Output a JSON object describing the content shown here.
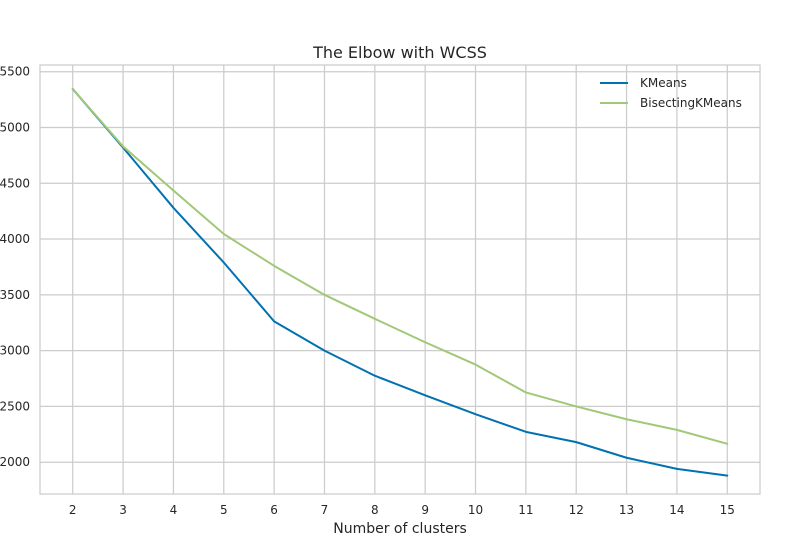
{
  "chart_data": {
    "type": "line",
    "title": "The Elbow with WCSS",
    "xlabel": "Number of clusters",
    "ylabel": "",
    "x": [
      2,
      3,
      4,
      5,
      6,
      7,
      8,
      9,
      10,
      11,
      12,
      13,
      14,
      15
    ],
    "xlim": [
      1.35,
      15.65
    ],
    "ylim": [
      1715,
      5560
    ],
    "xticks": [
      2,
      3,
      4,
      5,
      6,
      7,
      8,
      9,
      10,
      11,
      12,
      13,
      14,
      15
    ],
    "yticks": [
      2000,
      2500,
      3000,
      3500,
      4000,
      4500,
      5000,
      5500
    ],
    "grid": true,
    "legend_position": "top-right",
    "series": [
      {
        "name": "KMeans",
        "color": "#0072b2",
        "values": [
          5345,
          4820,
          4280,
          3790,
          3262,
          3000,
          2775,
          2600,
          2430,
          2272,
          2180,
          2040,
          1940,
          1880
        ]
      },
      {
        "name": "BisectingKMeans",
        "color": "#a1c878",
        "values": [
          5345,
          4830,
          4435,
          4045,
          3760,
          3500,
          3285,
          3075,
          2875,
          2625,
          2500,
          2385,
          2290,
          2165
        ]
      }
    ],
    "colors": {
      "grid": "#cccccc",
      "frame": "#cccccc",
      "text": "#262626",
      "background": "#ffffff"
    }
  }
}
